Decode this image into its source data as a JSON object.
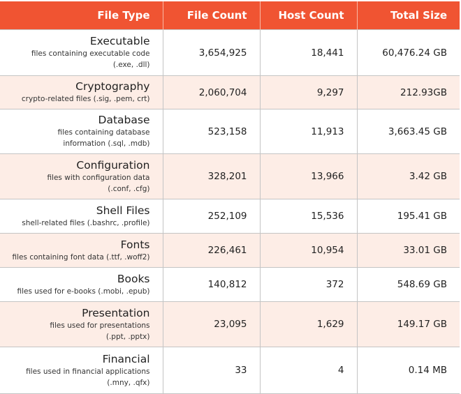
{
  "header": {
    "file_type": "File Type",
    "file_count": "File Count",
    "host_count": "Host Count",
    "total_size": "Total Size"
  },
  "colors": {
    "header": "#f05432",
    "alt_row": "#fdede6"
  },
  "rows": [
    {
      "name": "Executable",
      "desc": [
        "files containing executable code",
        "(.exe, .dll)"
      ],
      "file_count": "3,654,925",
      "host_count": "18,441",
      "total_size": "60,476.24 GB"
    },
    {
      "name": "Cryptography",
      "desc": [
        "crypto-related files (.sig, .pem, crt)"
      ],
      "file_count": "2,060,704",
      "host_count": "9,297",
      "total_size": "212.93GB"
    },
    {
      "name": "Database",
      "desc": [
        "files containing database",
        "information (.sql, .mdb)"
      ],
      "file_count": "523,158",
      "host_count": "11,913",
      "total_size": "3,663.45 GB"
    },
    {
      "name": "Configuration",
      "desc": [
        "files with configuration data",
        "(.conf, .cfg)"
      ],
      "file_count": "328,201",
      "host_count": "13,966",
      "total_size": "3.42 GB"
    },
    {
      "name": "Shell Files",
      "desc": [
        "shell-related files (.bashrc, .profile)"
      ],
      "file_count": "252,109",
      "host_count": "15,536",
      "total_size": "195.41 GB"
    },
    {
      "name": "Fonts",
      "desc": [
        "files containing font data (.ttf, .woff2)"
      ],
      "file_count": "226,461",
      "host_count": "10,954",
      "total_size": "33.01 GB"
    },
    {
      "name": "Books",
      "desc": [
        "files used for e-books (.mobi, .epub)"
      ],
      "file_count": "140,812",
      "host_count": "372",
      "total_size": "548.69 GB"
    },
    {
      "name": "Presentation",
      "desc": [
        "files used for presentations",
        "(.ppt, .pptx)"
      ],
      "file_count": "23,095",
      "host_count": "1,629",
      "total_size": "149.17 GB"
    },
    {
      "name": "Financial",
      "desc": [
        "files used in financial applications",
        "(.mny, .qfx)"
      ],
      "file_count": "33",
      "host_count": "4",
      "total_size": "0.14 MB"
    }
  ]
}
